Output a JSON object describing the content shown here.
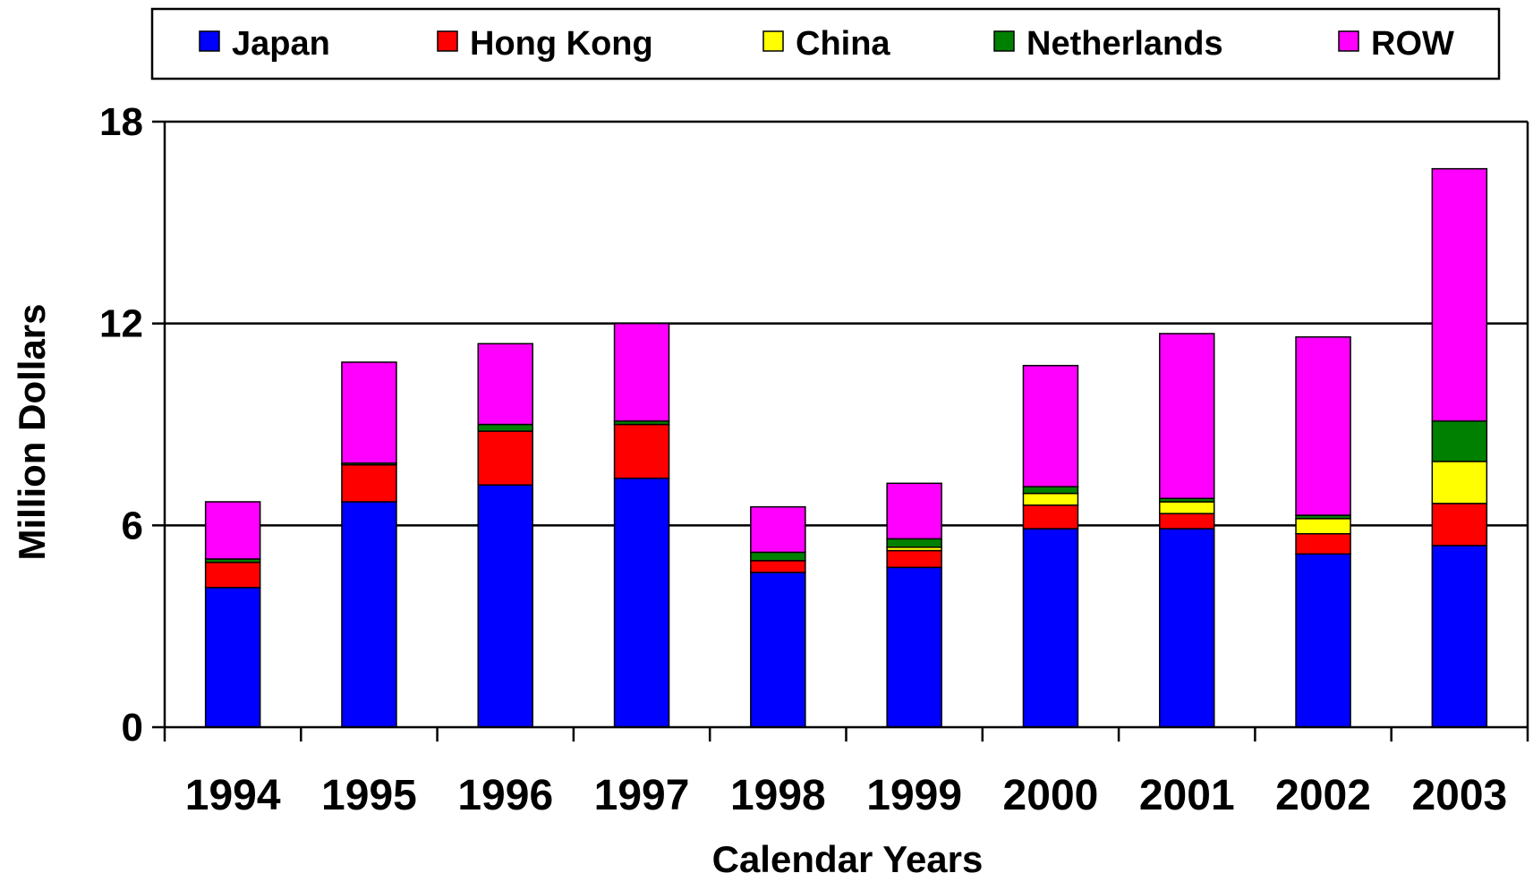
{
  "chart_data": {
    "type": "bar",
    "stacked": true,
    "xlabel": "Calendar Years",
    "ylabel": "Million Dollars",
    "ylim": [
      0,
      18
    ],
    "yticks": [
      "0",
      "6",
      "12",
      "18"
    ],
    "grid": "horizontal",
    "legend_position": "top",
    "categories": [
      "1994",
      "1995",
      "1996",
      "1997",
      "1998",
      "1999",
      "2000",
      "2001",
      "2002",
      "2003"
    ],
    "series": [
      {
        "name": "Japan",
        "color": "#0000ff",
        "values": [
          4.15,
          6.7,
          7.2,
          7.4,
          4.6,
          4.75,
          5.9,
          5.9,
          5.15,
          5.4
        ]
      },
      {
        "name": "Hong Kong",
        "color": "#ff0000",
        "values": [
          0.75,
          1.1,
          1.6,
          1.6,
          0.35,
          0.5,
          0.7,
          0.45,
          0.6,
          1.25
        ]
      },
      {
        "name": "China",
        "color": "#ffff00",
        "values": [
          0.0,
          0.0,
          0.0,
          0.0,
          0.0,
          0.1,
          0.35,
          0.35,
          0.45,
          1.25
        ]
      },
      {
        "name": "Netherlands",
        "color": "#008000",
        "values": [
          0.1,
          0.05,
          0.2,
          0.1,
          0.25,
          0.25,
          0.2,
          0.1,
          0.1,
          1.2
        ]
      },
      {
        "name": "ROW",
        "color": "#ff00ff",
        "values": [
          1.7,
          3.0,
          2.4,
          2.9,
          1.35,
          1.65,
          3.6,
          4.9,
          5.3,
          7.5
        ]
      }
    ]
  }
}
